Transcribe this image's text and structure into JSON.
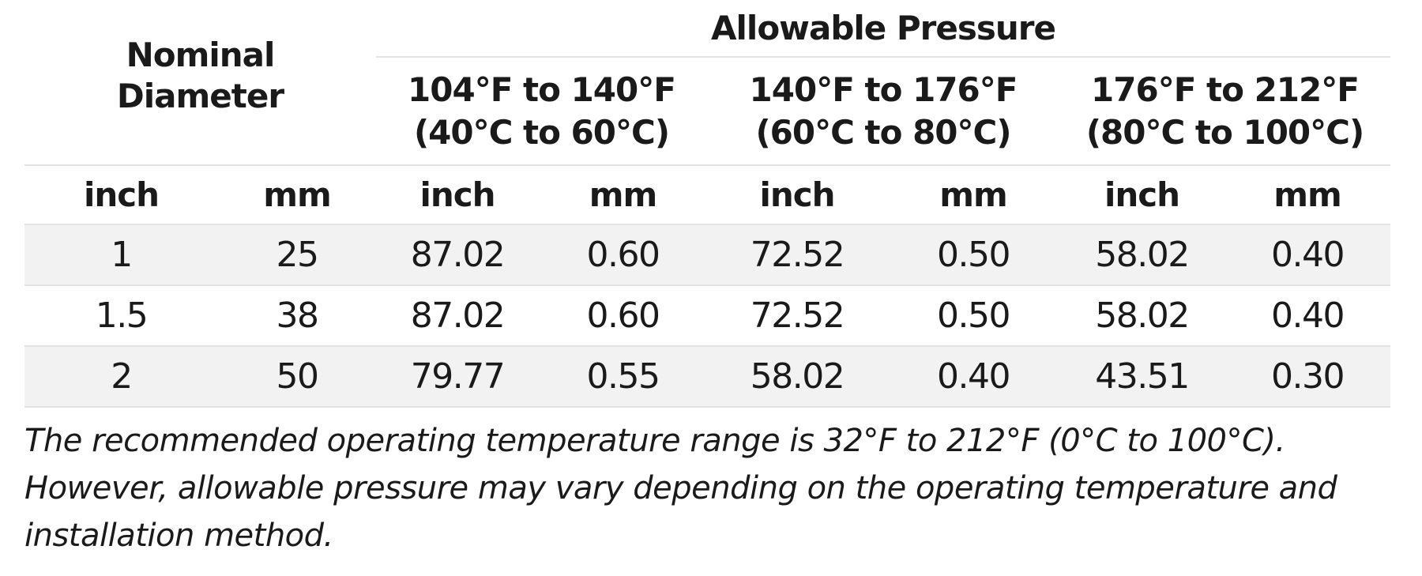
{
  "header": {
    "nominal": "Nominal Diameter",
    "allowable": "Allowable Pressure",
    "ranges": [
      {
        "f": "104°F to 140°F",
        "c": "(40°C to 60°C)"
      },
      {
        "f": "140°F to 176°F",
        "c": "(60°C to 80°C)"
      },
      {
        "f": "176°F to 212°F",
        "c": "(80°C to 100°C)"
      }
    ],
    "units": [
      "inch",
      "mm",
      "inch",
      "mm",
      "inch",
      "mm",
      "inch",
      "mm"
    ]
  },
  "table": {
    "rows": [
      [
        "1",
        "25",
        "87.02",
        "0.60",
        "72.52",
        "0.50",
        "58.02",
        "0.40"
      ],
      [
        "1.5",
        "38",
        "87.02",
        "0.60",
        "72.52",
        "0.50",
        "58.02",
        "0.40"
      ],
      [
        "2",
        "50",
        "79.77",
        "0.55",
        "58.02",
        "0.40",
        "43.51",
        "0.30"
      ]
    ]
  },
  "note": "The recommended operating temperature range is 32°F to 212°F (0°C to 100°C). However, allowable pressure may vary depending on the operating temperature and installation method."
}
